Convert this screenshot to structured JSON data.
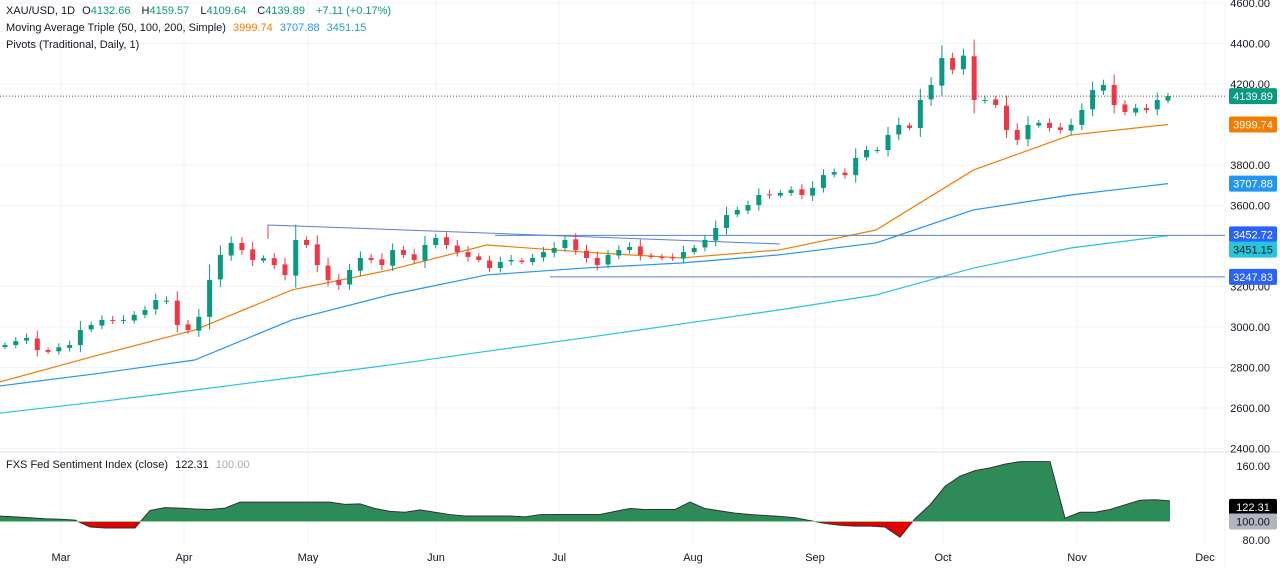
{
  "legend": {
    "symbol": "XAU/USD, 1D",
    "open_label": "O",
    "open": "4132.66",
    "high_label": "H",
    "high": "4159.57",
    "low_label": "L",
    "low": "4109.64",
    "close_label": "C",
    "close": "4139.89",
    "change": "+7.11 (+0.17%)",
    "ma_title": "Moving Average Triple (50, 100, 200, Simple)",
    "ma50": "3999.74",
    "ma100": "3707.88",
    "ma200": "3451.15",
    "pivots_title": "Pivots (Traditional, Daily, 1)",
    "sentiment_title": "FXS Fed Sentiment Index (close)",
    "sentiment_value": "122.31",
    "sentiment_base": "100.00"
  },
  "colors": {
    "up": "#089981",
    "down": "#f23645",
    "ma50": "#f57c00",
    "ma100": "#2196f3",
    "ma200": "#26c6da",
    "pivot": "#2962ff",
    "sentiment_pos": "#2e8b57",
    "sentiment_neg": "#e00000"
  },
  "chart_data": [
    {
      "type": "candlestick",
      "title": "XAU/USD, 1D",
      "ylim": [
        2400,
        4600
      ],
      "y_ticks": [
        "4600.00",
        "4400.00",
        "4200.00",
        "3800.00",
        "3600.00",
        "3200.00",
        "3000.00",
        "2800.00",
        "2600.00",
        "2400.00"
      ],
      "x_ticks": [
        "Mar",
        "Apr",
        "May",
        "Jun",
        "Jul",
        "Aug",
        "Sep",
        "Oct",
        "Nov",
        "Dec"
      ],
      "close": [
        2911,
        2930,
        2946,
        2886,
        2877,
        2900,
        2911,
        2985,
        3010,
        3035,
        3030,
        3035,
        3060,
        3084,
        3133,
        3130,
        3010,
        2985,
        3050,
        3232,
        3356,
        3415,
        3380,
        3331,
        3340,
        3306,
        3257,
        3430,
        3405,
        3306,
        3232,
        3207,
        3281,
        3341,
        3331,
        3306,
        3380,
        3356,
        3331,
        3405,
        3440,
        3405,
        3370,
        3346,
        3331,
        3291,
        3321,
        3331,
        3321,
        3341,
        3370,
        3390,
        3430,
        3380,
        3341,
        3306,
        3356,
        3380,
        3395,
        3356,
        3346,
        3341,
        3341,
        3370,
        3390,
        3430,
        3489,
        3553,
        3578,
        3602,
        3652,
        3652,
        3662,
        3677,
        3652,
        3687,
        3750,
        3765,
        3750,
        3835,
        3874,
        3874,
        3948,
        3998,
        3983,
        4121,
        4195,
        4328,
        4270,
        4340,
        4121,
        4121,
        4096,
        3973,
        3924,
        3998,
        4008,
        3983,
        3973,
        3998,
        4072,
        4170,
        4195,
        4096,
        4062,
        4081,
        4072,
        4121,
        4139.89
      ],
      "ma50": [
        2729,
        2860,
        2985,
        3183,
        3281,
        3405,
        3370,
        3341,
        3380,
        3479,
        3775,
        3948,
        4000
      ],
      "ma100": [
        2709,
        2770,
        2837,
        3035,
        3158,
        3257,
        3291,
        3316,
        3356,
        3415,
        3578,
        3652,
        3708
      ],
      "ma200": [
        2575,
        2630,
        2689,
        2750,
        2812,
        2880,
        2946,
        3015,
        3084,
        3158,
        3291,
        3390,
        3451
      ],
      "pivot_levels": [
        {
          "label": "3452.72",
          "value": 3452.72
        },
        {
          "label": "3247.83",
          "value": 3247.83
        }
      ],
      "trendline": [
        3504,
        3410
      ],
      "last_price": {
        "label": "4139.89",
        "value": 4139.89
      },
      "ma_labels": {
        "ma50": "3999.74",
        "ma100": "3707.88",
        "ma200": "3451.15"
      }
    },
    {
      "type": "area",
      "title": "FXS Fed Sentiment Index (close)",
      "ylim": [
        80,
        170
      ],
      "baseline": 100,
      "y_ticks": [
        "160.00",
        "80.00"
      ],
      "last_label": "122.31",
      "baseline_label": "100.00",
      "values": [
        105.8,
        105,
        104,
        103,
        102.5,
        101.5,
        94,
        93,
        93,
        93,
        112,
        115,
        114.5,
        113.5,
        113,
        114.5,
        121,
        121,
        121,
        121,
        121,
        121,
        121,
        118.5,
        119,
        114,
        111,
        110,
        112.5,
        110,
        107.5,
        106,
        106,
        106,
        106,
        105,
        107.5,
        107.6,
        107.6,
        107.6,
        107.6,
        111,
        114,
        113,
        113,
        113,
        121,
        114,
        111.5,
        109,
        107.6,
        106.5,
        105.5,
        104,
        101,
        98,
        96,
        95,
        95,
        94,
        83,
        103,
        118,
        138,
        149,
        155,
        158,
        162,
        164.7,
        164.7,
        164.7,
        103.6,
        110,
        110,
        113,
        118,
        123,
        123.5,
        122.3
      ]
    }
  ]
}
